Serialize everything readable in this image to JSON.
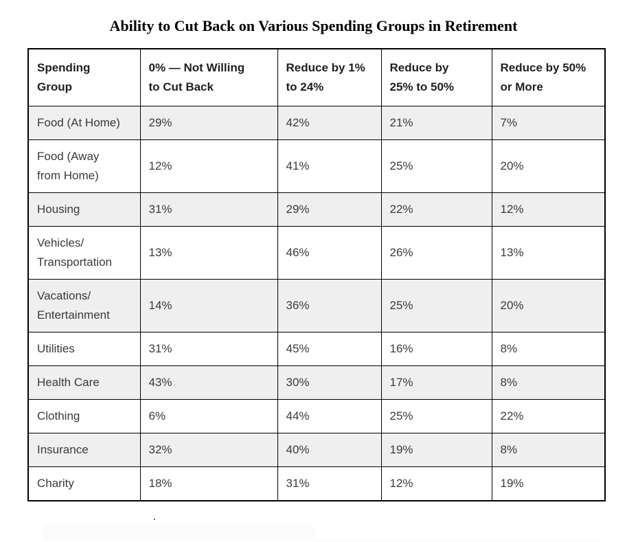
{
  "title": "Ability to Cut Back on Various Spending Groups in Retirement",
  "table": {
    "columns": [
      {
        "label": "Spending\nGroup"
      },
      {
        "label": "0% — Not Willing\nto Cut Back"
      },
      {
        "label": "Reduce by 1%\nto 24%"
      },
      {
        "label": "Reduce by\n25% to 50%"
      },
      {
        "label": "Reduce by 50%\nor More"
      }
    ],
    "rows": [
      {
        "group": "Food (At Home)",
        "values": [
          "29%",
          "42%",
          "21%",
          "7%"
        ]
      },
      {
        "group": "Food (Away\nfrom Home)",
        "values": [
          "12%",
          "41%",
          "25%",
          "20%"
        ]
      },
      {
        "group": "Housing",
        "values": [
          "31%",
          "29%",
          "22%",
          "12%"
        ]
      },
      {
        "group": "Vehicles/\nTransportation",
        "values": [
          "13%",
          "46%",
          "26%",
          "13%"
        ]
      },
      {
        "group": "Vacations/\nEntertainment",
        "values": [
          "14%",
          "36%",
          "25%",
          "20%"
        ]
      },
      {
        "group": "Utilities",
        "values": [
          "31%",
          "45%",
          "16%",
          "8%"
        ]
      },
      {
        "group": "Health Care",
        "values": [
          "43%",
          "30%",
          "17%",
          "8%"
        ]
      },
      {
        "group": "Clothing",
        "values": [
          "6%",
          "44%",
          "25%",
          "22%"
        ]
      },
      {
        "group": "Insurance",
        "values": [
          "32%",
          "40%",
          "19%",
          "8%"
        ]
      },
      {
        "group": "Charity",
        "values": [
          "18%",
          "31%",
          "12%",
          "19%"
        ]
      }
    ],
    "colors": {
      "row_alt_background": "#efefef",
      "row_background": "#ffffff",
      "border": "#000000",
      "header_text": "#1f1f1f",
      "cell_text": "#3a3a3a"
    }
  },
  "chart_data": {
    "type": "table",
    "title": "Ability to Cut Back on Various Spending Groups in Retirement",
    "columns": [
      "Spending Group",
      "0% — Not Willing to Cut Back",
      "Reduce by 1% to 24%",
      "Reduce by 25% to 50%",
      "Reduce by 50% or More"
    ],
    "unit": "%",
    "rows": [
      {
        "category": "Food (At Home)",
        "values": [
          29,
          42,
          21,
          7
        ]
      },
      {
        "category": "Food (Away from Home)",
        "values": [
          12,
          41,
          25,
          20
        ]
      },
      {
        "category": "Housing",
        "values": [
          31,
          29,
          22,
          12
        ]
      },
      {
        "category": "Vehicles/Transportation",
        "values": [
          13,
          46,
          26,
          13
        ]
      },
      {
        "category": "Vacations/Entertainment",
        "values": [
          14,
          36,
          25,
          20
        ]
      },
      {
        "category": "Utilities",
        "values": [
          31,
          45,
          16,
          8
        ]
      },
      {
        "category": "Health Care",
        "values": [
          43,
          30,
          17,
          8
        ]
      },
      {
        "category": "Clothing",
        "values": [
          6,
          44,
          25,
          22
        ]
      },
      {
        "category": "Insurance",
        "values": [
          32,
          40,
          19,
          8
        ]
      },
      {
        "category": "Charity",
        "values": [
          18,
          31,
          12,
          19
        ]
      }
    ],
    "layout": {
      "zebra_striping": true,
      "grid": true,
      "legend": "none"
    }
  }
}
